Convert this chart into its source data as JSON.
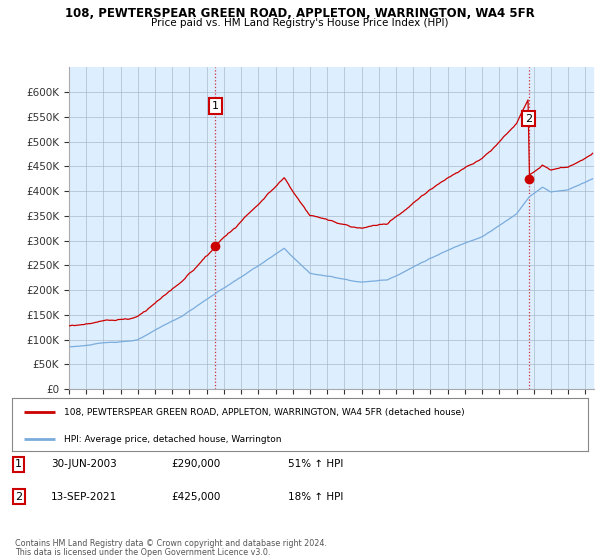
{
  "title1": "108, PEWTERSPEAR GREEN ROAD, APPLETON, WARRINGTON, WA4 5FR",
  "title2": "Price paid vs. HM Land Registry's House Price Index (HPI)",
  "legend_line1": "108, PEWTERSPEAR GREEN ROAD, APPLETON, WARRINGTON, WA4 5FR (detached house)",
  "legend_line2": "HPI: Average price, detached house, Warrington",
  "annotation1_label": "1",
  "annotation1_date": "30-JUN-2003",
  "annotation1_price": "£290,000",
  "annotation1_hpi": "51% ↑ HPI",
  "annotation2_label": "2",
  "annotation2_date": "13-SEP-2021",
  "annotation2_price": "£425,000",
  "annotation2_hpi": "18% ↑ HPI",
  "footer1": "Contains HM Land Registry data © Crown copyright and database right 2024.",
  "footer2": "This data is licensed under the Open Government Licence v3.0.",
  "hpi_color": "#7aacdc",
  "price_color": "#cc0000",
  "chart_bg": "#ddeeff",
  "background_color": "#ffffff",
  "grid_color": "#aabbcc",
  "sale1_t": 2003.5,
  "sale1_p": 290000,
  "sale2_t": 2021.71,
  "sale2_p": 425000,
  "ylim_max": 650000,
  "yticks": [
    0,
    50000,
    100000,
    150000,
    200000,
    250000,
    300000,
    350000,
    400000,
    450000,
    500000,
    550000,
    600000
  ]
}
